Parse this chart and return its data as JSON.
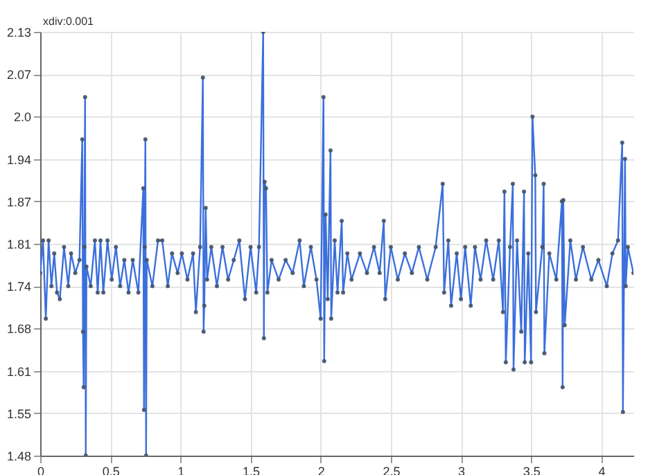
{
  "chart_data": {
    "type": "line",
    "annotations": [
      "xdiv:0.001"
    ],
    "x": [
      0,
      0.02,
      0.04,
      0.06,
      0.08,
      0.1,
      0.12,
      0.14,
      0.17,
      0.2,
      0.22,
      0.25,
      0.28,
      0.3,
      0.305,
      0.31,
      0.315,
      0.32,
      0.325,
      0.33,
      0.36,
      0.39,
      0.41,
      0.43,
      0.45,
      0.48,
      0.51,
      0.54,
      0.57,
      0.6,
      0.63,
      0.66,
      0.7,
      0.735,
      0.74,
      0.745,
      0.75,
      0.755,
      0.76,
      0.8,
      0.84,
      0.87,
      0.91,
      0.94,
      0.98,
      1.01,
      1.05,
      1.09,
      1.11,
      1.14,
      1.16,
      1.165,
      1.17,
      1.18,
      1.19,
      1.22,
      1.26,
      1.3,
      1.34,
      1.38,
      1.42,
      1.46,
      1.5,
      1.54,
      1.56,
      1.59,
      1.595,
      1.6,
      1.61,
      1.62,
      1.65,
      1.7,
      1.75,
      1.8,
      1.85,
      1.88,
      1.93,
      1.97,
      2.0,
      2.02,
      2.025,
      2.035,
      2.05,
      2.07,
      2.075,
      2.1,
      2.12,
      2.15,
      2.16,
      2.19,
      2.22,
      2.28,
      2.33,
      2.38,
      2.42,
      2.45,
      2.46,
      2.5,
      2.55,
      2.6,
      2.65,
      2.7,
      2.76,
      2.82,
      2.87,
      2.88,
      2.91,
      2.93,
      2.97,
      3.0,
      3.03,
      3.07,
      3.1,
      3.14,
      3.18,
      3.23,
      3.27,
      3.3,
      3.31,
      3.32,
      3.35,
      3.37,
      3.375,
      3.4,
      3.43,
      3.45,
      3.455,
      3.48,
      3.5,
      3.51,
      3.53,
      3.535,
      3.58,
      3.59,
      3.595,
      3.63,
      3.68,
      3.72,
      3.725,
      3.73,
      3.74,
      3.78,
      3.82,
      3.87,
      3.93,
      3.98,
      4.04,
      4.08,
      4.12,
      4.15,
      4.155,
      4.17,
      4.175,
      4.19,
      4.23
    ],
    "series": [
      {
        "color": "#3b6fdc",
        "values": [
          1.76,
          1.81,
          1.69,
          1.81,
          1.74,
          1.79,
          1.73,
          1.72,
          1.8,
          1.74,
          1.79,
          1.76,
          1.78,
          1.965,
          1.67,
          1.585,
          1.8,
          2.03,
          1.48,
          1.77,
          1.74,
          1.81,
          1.73,
          1.81,
          1.73,
          1.81,
          1.75,
          1.8,
          1.74,
          1.78,
          1.73,
          1.78,
          1.73,
          1.89,
          1.55,
          1.8,
          1.965,
          1.48,
          1.78,
          1.74,
          1.81,
          1.81,
          1.74,
          1.79,
          1.76,
          1.79,
          1.75,
          1.79,
          1.7,
          1.8,
          2.06,
          1.67,
          1.71,
          1.86,
          1.75,
          1.8,
          1.74,
          1.8,
          1.75,
          1.78,
          1.81,
          1.72,
          1.8,
          1.73,
          1.8,
          2.13,
          1.66,
          1.9,
          1.89,
          1.73,
          1.78,
          1.75,
          1.78,
          1.76,
          1.81,
          1.74,
          1.8,
          1.75,
          1.69,
          2.03,
          1.625,
          1.85,
          1.72,
          1.948,
          1.69,
          1.81,
          1.73,
          1.84,
          1.73,
          1.79,
          1.75,
          1.79,
          1.76,
          1.8,
          1.76,
          1.84,
          1.72,
          1.8,
          1.75,
          1.79,
          1.76,
          1.8,
          1.75,
          1.8,
          1.897,
          1.73,
          1.81,
          1.71,
          1.79,
          1.72,
          1.8,
          1.71,
          1.8,
          1.75,
          1.81,
          1.75,
          1.81,
          1.7,
          1.885,
          1.623,
          1.8,
          1.897,
          1.612,
          1.81,
          1.67,
          1.885,
          1.623,
          1.79,
          1.623,
          2.0,
          1.91,
          1.7,
          1.8,
          1.897,
          1.637,
          1.79,
          1.75,
          1.87,
          1.585,
          1.872,
          1.68,
          1.81,
          1.75,
          1.8,
          1.75,
          1.78,
          1.74,
          1.79,
          1.81,
          1.96,
          1.547,
          1.935,
          1.74,
          1.8,
          1.76
        ]
      }
    ],
    "xlim": [
      0,
      4.23
    ],
    "xticks": [
      0,
      0.5,
      1,
      1.5,
      2,
      2.5,
      3,
      3.5,
      4
    ],
    "ylim": [
      1.48,
      2.13
    ],
    "yticks": [
      1.48,
      {
        "value": 1.545,
        "label": "1.55"
      },
      1.61,
      {
        "value": 1.675,
        "label": "1.68"
      },
      1.74,
      {
        "value": 1.805,
        "label": "1.81"
      },
      1.87,
      {
        "value": 1.935,
        "label": "1.94"
      },
      {
        "value": 2.0,
        "label": "2.0"
      },
      {
        "value": 2.065,
        "label": "2.07"
      },
      2.13
    ],
    "grid": true,
    "marker": "circle",
    "line_style": "solid"
  }
}
